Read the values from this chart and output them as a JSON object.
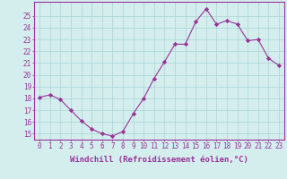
{
  "x": [
    0,
    1,
    2,
    3,
    4,
    5,
    6,
    7,
    8,
    9,
    10,
    11,
    12,
    13,
    14,
    15,
    16,
    17,
    18,
    19,
    20,
    21,
    22,
    23
  ],
  "y": [
    18.1,
    18.3,
    17.9,
    17.0,
    16.1,
    15.4,
    15.0,
    14.8,
    15.2,
    16.7,
    18.0,
    19.7,
    21.1,
    22.6,
    22.6,
    24.5,
    25.6,
    24.3,
    24.6,
    24.3,
    22.9,
    23.0,
    21.4,
    20.8
  ],
  "line_color": "#993399",
  "marker": "D",
  "marker_size": 2.2,
  "background_color": "#d4eeee",
  "grid_color": "#aad4d4",
  "xlabel": "Windchill (Refroidissement éolien,°C)",
  "ylim": [
    14.5,
    26.2
  ],
  "xlim": [
    -0.5,
    23.5
  ],
  "yticks": [
    15,
    16,
    17,
    18,
    19,
    20,
    21,
    22,
    23,
    24,
    25
  ],
  "xtick_labels": [
    "0",
    "1",
    "2",
    "3",
    "4",
    "5",
    "6",
    "7",
    "8",
    "9",
    "10",
    "11",
    "12",
    "13",
    "14",
    "15",
    "16",
    "17",
    "18",
    "19",
    "20",
    "21",
    "22",
    "23"
  ],
  "axis_color": "#993399",
  "tick_color": "#993399",
  "label_color": "#993399",
  "font_size": 5.5,
  "xlabel_fontsize": 6.5
}
